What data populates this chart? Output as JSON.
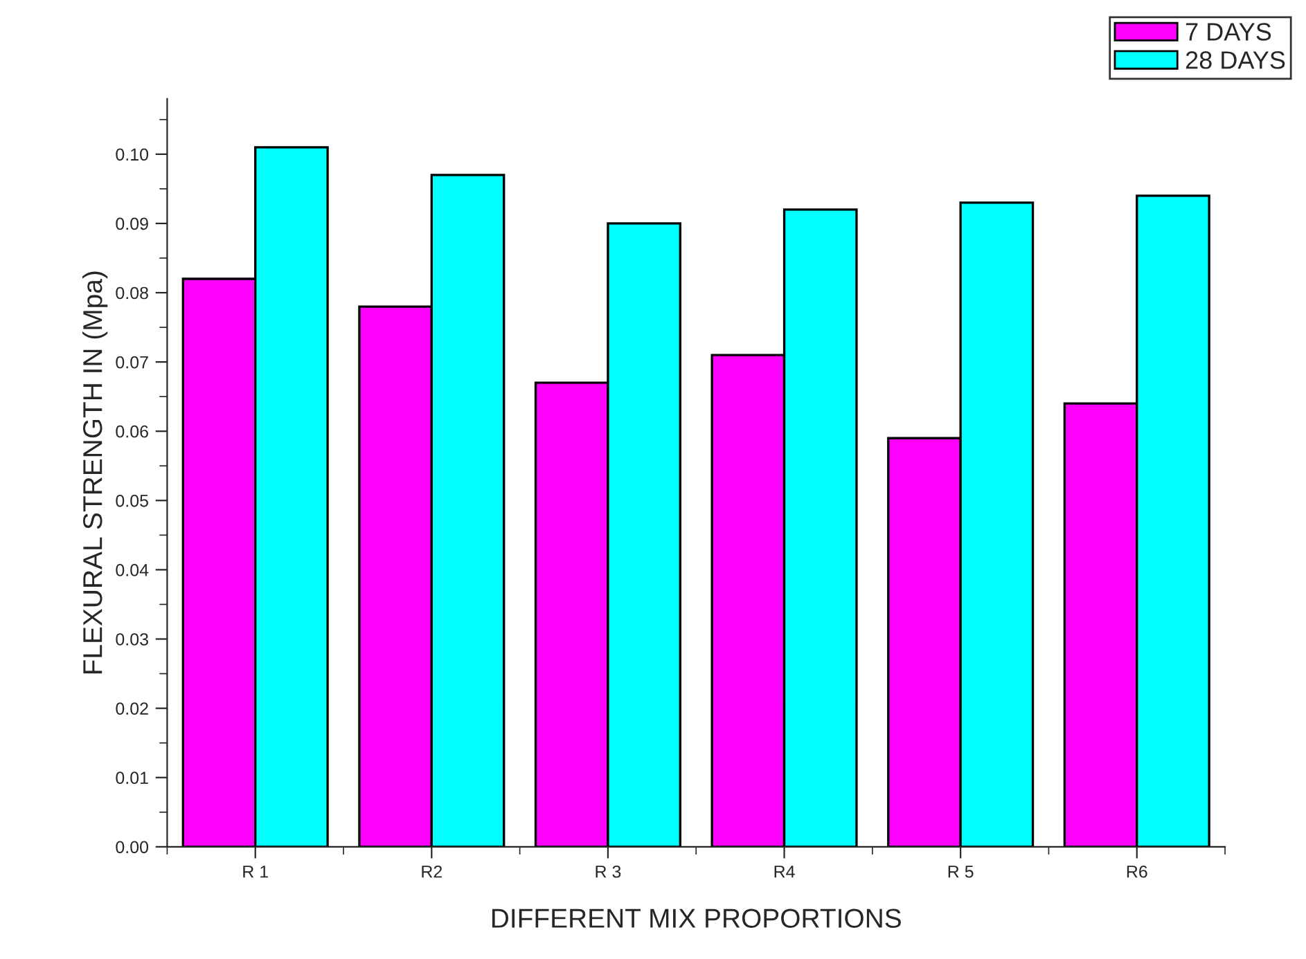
{
  "chart_data": {
    "type": "bar",
    "xlabel": "DIFFERENT MIX PROPORTIONS",
    "ylabel": "FLEXURAL STRENGTH IN (Mpa)",
    "categories": [
      "R 1",
      "R2",
      "R 3",
      "R4",
      "R 5",
      "R6"
    ],
    "series": [
      {
        "name": "7 DAYS",
        "color": "#ff00ff",
        "values": [
          0.082,
          0.078,
          0.067,
          0.071,
          0.059,
          0.064
        ]
      },
      {
        "name": "28 DAYS",
        "color": "#00ffff",
        "values": [
          0.101,
          0.097,
          0.09,
          0.092,
          0.093,
          0.094
        ]
      }
    ],
    "ylim": [
      0,
      0.108
    ],
    "yticks": [
      {
        "value": 0,
        "label": "0.00"
      },
      0.01,
      0.02,
      0.03,
      0.04,
      0.05,
      0.06,
      0.07,
      0.08,
      0.09,
      {
        "value": 0.1,
        "label": "0.10"
      }
    ],
    "grid": false,
    "legend": "top right"
  }
}
